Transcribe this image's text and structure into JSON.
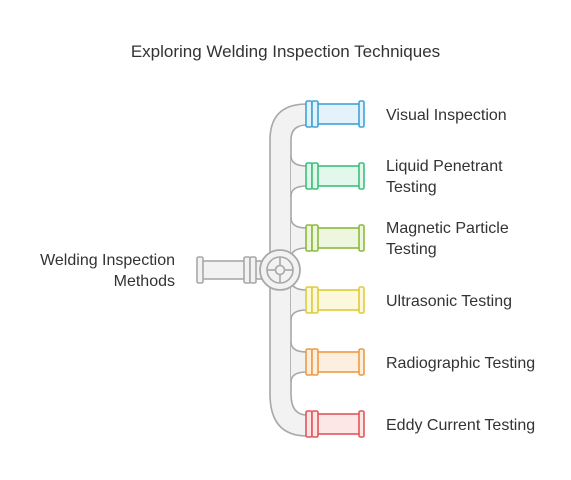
{
  "title": "Exploring Welding Inspection Techniques",
  "hub": {
    "label_lines": [
      "Welding Inspection",
      "Methods"
    ],
    "color": "#b0b0b0",
    "icon": "valve-wheel-icon"
  },
  "branches": [
    {
      "id": "visual-inspection",
      "lines": [
        "Visual Inspection"
      ],
      "stroke": "#3ea3d6",
      "fill": "#e4f3fb"
    },
    {
      "id": "liquid-penetrant-testing",
      "lines": [
        "Liquid Penetrant",
        "Testing"
      ],
      "stroke": "#3cc07a",
      "fill": "#e3f8ec"
    },
    {
      "id": "magnetic-particle-testing",
      "lines": [
        "Magnetic Particle",
        "Testing"
      ],
      "stroke": "#8cbb3a",
      "fill": "#eef6e0"
    },
    {
      "id": "ultrasonic-testing",
      "lines": [
        "Ultrasonic Testing"
      ],
      "stroke": "#e0cc3a",
      "fill": "#fbf8dc"
    },
    {
      "id": "radiographic-testing",
      "lines": [
        "Radiographic Testing"
      ],
      "stroke": "#ee9a44",
      "fill": "#fdefe0"
    },
    {
      "id": "eddy-current-testing",
      "lines": [
        "Eddy Current Testing"
      ],
      "stroke": "#e0575a",
      "fill": "#fde6e6"
    }
  ]
}
